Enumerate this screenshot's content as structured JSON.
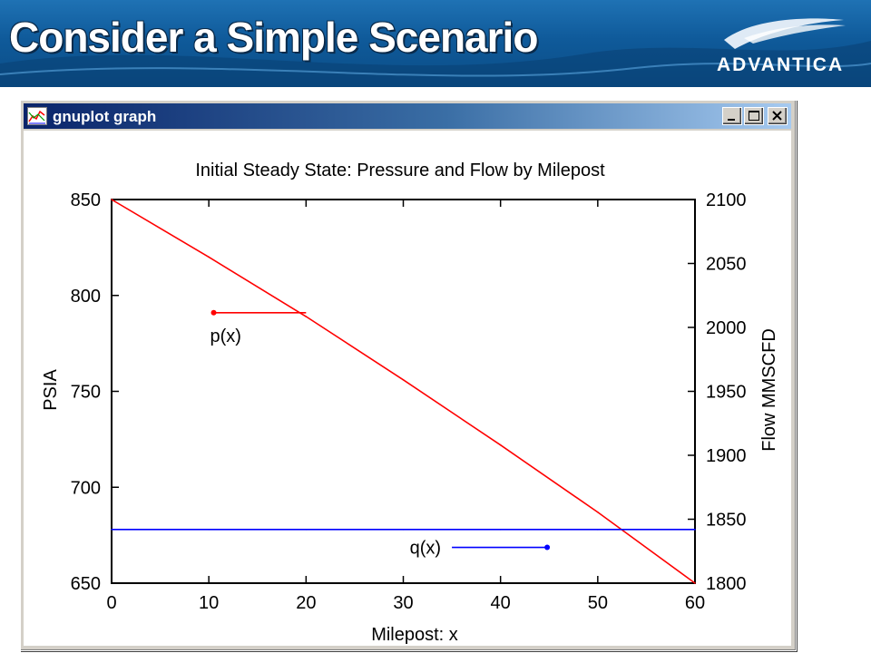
{
  "slide": {
    "title": "Consider a Simple Scenario",
    "logo_text": "ADVANTICA"
  },
  "window": {
    "title": "gnuplot graph",
    "buttons": [
      "minimize",
      "maximize",
      "close"
    ]
  },
  "chart_data": {
    "type": "line",
    "title": "Initial Steady State: Pressure and Flow by Milepost",
    "xlabel": "Milepost: x",
    "ylabel": "PSIA",
    "y2label": "Flow MMSCFD",
    "xlim": [
      0,
      60
    ],
    "ylim": [
      650,
      850
    ],
    "y2lim": [
      1800,
      2100
    ],
    "x_ticks": [
      "0",
      "10",
      "20",
      "30",
      "40",
      "50",
      "60"
    ],
    "y_ticks": [
      "650",
      "700",
      "750",
      "800",
      "850"
    ],
    "y2_ticks": [
      "1800",
      "1850",
      "1900",
      "1950",
      "2000",
      "2050",
      "2100"
    ],
    "grid": false,
    "series": [
      {
        "name": "p(x)",
        "axis": "y",
        "color": "#ff0000",
        "x": [
          0,
          10,
          20,
          30,
          40,
          50,
          60
        ],
        "values": [
          850,
          820,
          789,
          756,
          722,
          687,
          650
        ]
      },
      {
        "name": "q(x)",
        "axis": "y2",
        "color": "#0000ff",
        "x": [
          0,
          10,
          20,
          30,
          40,
          50,
          60
        ],
        "values": [
          1842,
          1842,
          1842,
          1842,
          1842,
          1842,
          1842
        ]
      }
    ],
    "annotations": [
      {
        "text": "p(x)",
        "color": "#ff0000",
        "arrow_from": [
          20,
          791
        ],
        "arrow_to": [
          10.5,
          791
        ],
        "axis": "y"
      },
      {
        "text": "q(x)",
        "color": "#0000ff",
        "arrow_from": [
          35,
          1828
        ],
        "arrow_to": [
          44.8,
          1828
        ],
        "axis": "y2"
      }
    ]
  }
}
